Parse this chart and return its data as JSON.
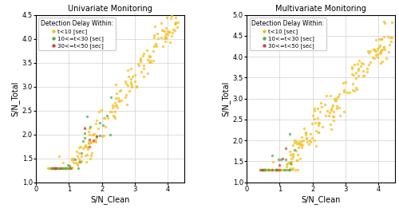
{
  "title_left": "Univariate Monitoring",
  "title_right": "Multivariate Monitoring",
  "xlabel": "S/N_Clean",
  "ylabel": "S/N_Total",
  "legend_title": "Detection Delay Within:",
  "legend_labels": [
    "t<10 [sec]",
    "10<=t<30 [sec]",
    "30<=t<50 [sec]"
  ],
  "colors": [
    "#f5c020",
    "#5aaa5a",
    "#cc4444"
  ],
  "xlim_left": [
    0,
    4.5
  ],
  "ylim_left": [
    1.0,
    4.5
  ],
  "xlim_right": [
    0,
    4.5
  ],
  "ylim_right": [
    1.0,
    5.0
  ],
  "xticks": [
    0,
    1,
    2,
    3,
    4
  ],
  "yticks_left": [
    1.0,
    1.5,
    2.0,
    2.5,
    3.0,
    3.5,
    4.0,
    4.5
  ],
  "yticks_right": [
    1.0,
    1.5,
    2.0,
    2.5,
    3.0,
    3.5,
    4.0,
    4.5,
    5.0
  ],
  "marker_size": 6,
  "alpha": 0.75,
  "background": "#ffffff"
}
